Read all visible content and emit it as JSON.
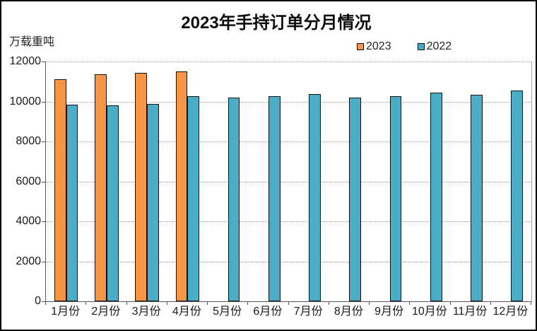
{
  "chart_data": {
    "type": "bar",
    "title": "2023年手持订单分月情况",
    "ylabel": "万载重吨",
    "xlabel": "",
    "categories": [
      "1月份",
      "2月份",
      "3月份",
      "4月份",
      "5月份",
      "6月份",
      "7月份",
      "8月份",
      "9月份",
      "10月份",
      "11月份",
      "12月份"
    ],
    "series": [
      {
        "name": "2023",
        "color": "#F79646",
        "values": [
          11100,
          11360,
          11450,
          11510
        ]
      },
      {
        "name": "2022",
        "color": "#4BACC6",
        "values": [
          9840,
          9790,
          9890,
          10250,
          10180,
          10270,
          10380,
          10210,
          10260,
          10430,
          10340,
          10560
        ]
      }
    ],
    "ylim": [
      0,
      12000
    ],
    "yticks": [
      0,
      2000,
      4000,
      6000,
      8000,
      10000,
      12000
    ],
    "grid": "horizontal-dotted",
    "legend_position": "top",
    "legend_entries": [
      "2023",
      "2022"
    ]
  },
  "colors": {
    "series_2023": "#F79646",
    "series_2022": "#4BACC6",
    "bar_border": "#111111",
    "gridline": "#9e9e9e",
    "axis_line": "#595959",
    "text": "#1a1a1a",
    "frame_border": "#000000"
  }
}
